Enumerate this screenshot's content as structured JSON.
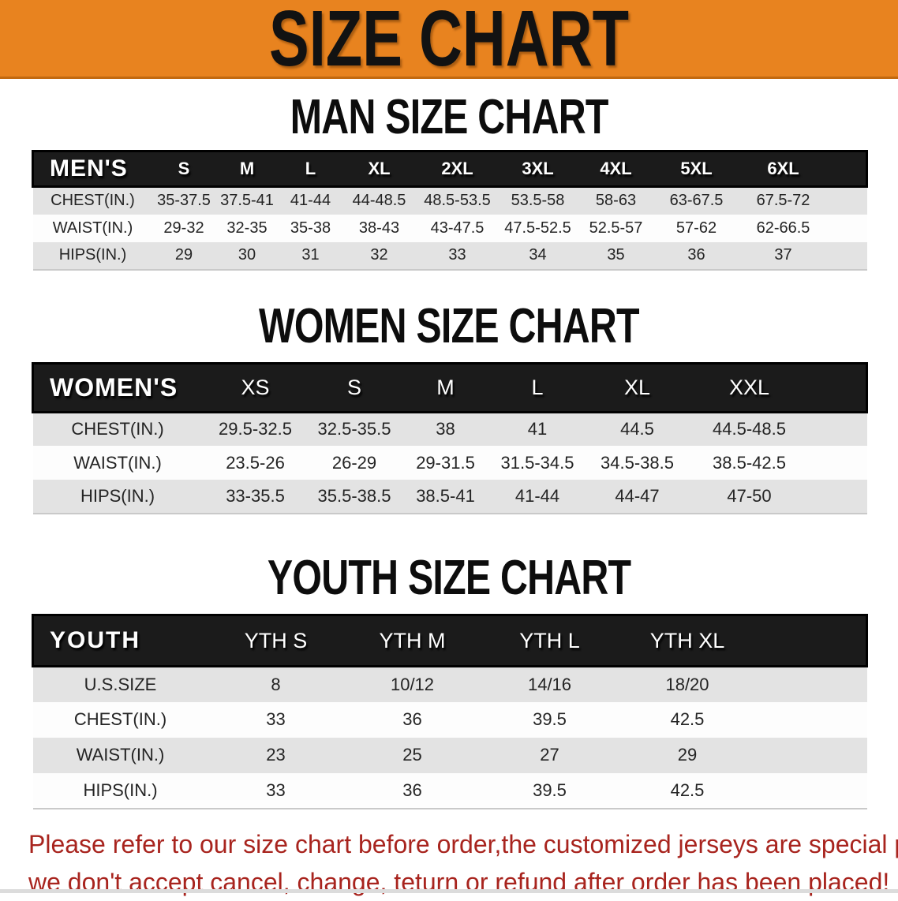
{
  "banner": {
    "title": "SIZE CHART"
  },
  "men": {
    "heading": "MAN SIZE CHART",
    "corner_label": "MEN'S",
    "sizes": [
      "S",
      "M",
      "L",
      "XL",
      "2XL",
      "3XL",
      "4XL",
      "5XL",
      "6XL"
    ],
    "rows": [
      {
        "label": "CHEST(IN.)",
        "values": [
          "35-37.5",
          "37.5-41",
          "41-44",
          "44-48.5",
          "48.5-53.5",
          "53.5-58",
          "58-63",
          "63-67.5",
          "67.5-72"
        ]
      },
      {
        "label": "WAIST(IN.)",
        "values": [
          "29-32",
          "32-35",
          "35-38",
          "38-43",
          "43-47.5",
          "47.5-52.5",
          "52.5-57",
          "57-62",
          "62-66.5"
        ]
      },
      {
        "label": "HIPS(IN.)",
        "values": [
          "29",
          "30",
          "31",
          "32",
          "33",
          "34",
          "35",
          "36",
          "37"
        ]
      }
    ]
  },
  "women": {
    "heading": "WOMEN SIZE CHART",
    "corner_label": "WOMEN'S",
    "sizes": [
      "XS",
      "S",
      "M",
      "L",
      "XL",
      "XXL"
    ],
    "rows": [
      {
        "label": "CHEST(IN.)",
        "values": [
          "29.5-32.5",
          "32.5-35.5",
          "38",
          "41",
          "44.5",
          "44.5-48.5"
        ]
      },
      {
        "label": "WAIST(IN.)",
        "values": [
          "23.5-26",
          "26-29",
          "29-31.5",
          "31.5-34.5",
          "34.5-38.5",
          "38.5-42.5"
        ]
      },
      {
        "label": "HIPS(IN.)",
        "values": [
          "33-35.5",
          "35.5-38.5",
          "38.5-41",
          "41-44",
          "44-47",
          "47-50"
        ]
      }
    ]
  },
  "youth": {
    "heading": "YOUTH SIZE CHART",
    "corner_label": "YOUTH",
    "sizes": [
      "YTH S",
      "YTH M",
      "YTH L",
      "YTH XL"
    ],
    "rows": [
      {
        "label": "U.S.SIZE",
        "values": [
          "8",
          "10/12",
          "14/16",
          "18/20"
        ]
      },
      {
        "label": "CHEST(IN.)",
        "values": [
          "33",
          "36",
          "39.5",
          "42.5"
        ]
      },
      {
        "label": "WAIST(IN.)",
        "values": [
          "23",
          "25",
          "27",
          "29"
        ]
      },
      {
        "label": "HIPS(IN.)",
        "values": [
          "33",
          "36",
          "39.5",
          "42.5"
        ]
      }
    ]
  },
  "disclaimer": {
    "line1": "Please refer to our size chart before order,the customized jerseys are special products,",
    "line2": "we don't accept cancel, change, teturn or refund after order has been placed!"
  },
  "colors": {
    "banner_bg": "#E8831F",
    "header_bar": "#1B1B1B",
    "row_alt": "#E3E3E3",
    "disclaimer_text": "#A8241E"
  }
}
